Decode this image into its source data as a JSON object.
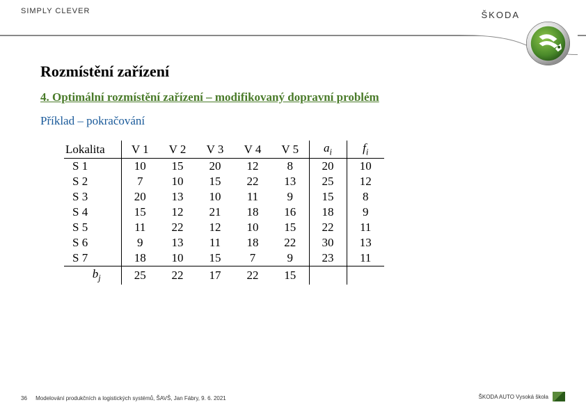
{
  "header": {
    "tagline": "SIMPLY CLEVER",
    "brand": "ŠKODA"
  },
  "content": {
    "heading": "Rozmístění zařízení",
    "subheading": "4. Optimální rozmístění zařízení – modifikovaný dopravní problém",
    "example_label": "Příklad – pokračování"
  },
  "table": {
    "header": {
      "lokalita": "Lokalita",
      "v1": "V 1",
      "v2": "V 2",
      "v3": "V 3",
      "v4": "V 4",
      "v5": "V 5",
      "ai_var": "a",
      "ai_sub": "i",
      "fi_var": "f",
      "fi_sub": "i",
      "bj_var": "b",
      "bj_sub": "j"
    },
    "rows": [
      {
        "label": "S 1",
        "v": [
          10,
          15,
          20,
          12,
          8
        ],
        "a": 20,
        "f": 10
      },
      {
        "label": "S 2",
        "v": [
          7,
          10,
          15,
          22,
          13
        ],
        "a": 25,
        "f": 12
      },
      {
        "label": "S 3",
        "v": [
          20,
          13,
          10,
          11,
          9
        ],
        "a": 15,
        "f": 8
      },
      {
        "label": "S 4",
        "v": [
          15,
          12,
          21,
          18,
          16
        ],
        "a": 18,
        "f": 9
      },
      {
        "label": "S 5",
        "v": [
          11,
          22,
          12,
          10,
          15
        ],
        "a": 22,
        "f": 11
      },
      {
        "label": "S 6",
        "v": [
          9,
          13,
          11,
          18,
          22
        ],
        "a": 30,
        "f": 13
      },
      {
        "label": "S 7",
        "v": [
          18,
          10,
          15,
          7,
          9
        ],
        "a": 23,
        "f": 11
      }
    ],
    "bj": [
      25,
      22,
      17,
      22,
      15
    ]
  },
  "footer": {
    "page": "36",
    "text": "Modelování produkčních a logistických systémů, ŠAVŠ, Jan Fábry, 9. 6. 2021",
    "right": "ŠKODA AUTO Vysoká škola"
  },
  "colors": {
    "green": "#4a7b2a",
    "blue": "#1a5a9a",
    "logo_outer": "#c0c0c0",
    "logo_green1": "#6aa838",
    "logo_green2": "#3a7a1a"
  }
}
